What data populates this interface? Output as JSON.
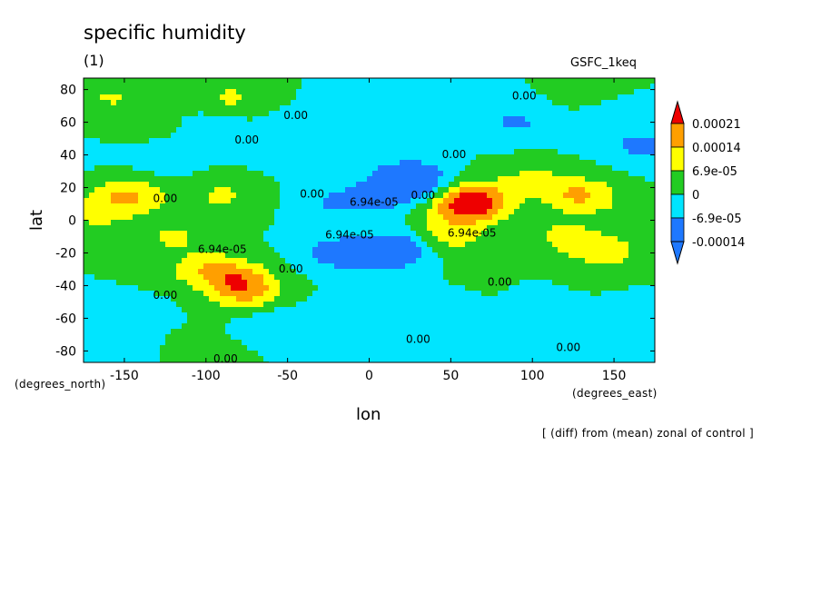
{
  "chart_data": {
    "type": "heatmap",
    "title": "specific humidity",
    "subtitle": "(1)",
    "experiment": "GSFC_1keq",
    "xlabel": "lon",
    "ylabel": "lat",
    "x_units": "(degrees_east)",
    "y_units": "(degrees_north)",
    "xlim": [
      -175,
      175
    ],
    "ylim": [
      -87,
      87
    ],
    "x_ticks": [
      -150,
      -100,
      -50,
      0,
      50,
      100,
      150
    ],
    "y_ticks": [
      -80,
      -60,
      -40,
      -20,
      0,
      20,
      40,
      60,
      80
    ],
    "x_tick_labels": [
      "-150",
      "-100",
      "-50",
      "0",
      "50",
      "100",
      "150"
    ],
    "y_tick_labels": [
      "-80",
      "-60",
      "-40",
      "-20",
      "0",
      "20",
      "40",
      "60",
      "80"
    ],
    "colorbar": {
      "levels": [
        -0.00014,
        -6.9e-05,
        0,
        6.9e-05,
        0.00014,
        0.00021
      ],
      "labels": [
        "-0.00014",
        "-6.9e-05",
        "0",
        "6.9e-05",
        "0.00014",
        "0.00021"
      ],
      "colors": [
        "#1e78ff",
        "#00e5ff",
        "#22cc22",
        "#ffff00",
        "#ff9f00",
        "#ee0000"
      ],
      "extend": "both"
    },
    "contour_labels": [
      {
        "text": "0.00",
        "lon": -45,
        "lat": 62
      },
      {
        "text": "0.00",
        "lon": -75,
        "lat": 47
      },
      {
        "text": "0.00",
        "lon": 95,
        "lat": 74
      },
      {
        "text": "0.00",
        "lon": 52,
        "lat": 38
      },
      {
        "text": "0.00",
        "lon": -125,
        "lat": 11
      },
      {
        "text": "0.00",
        "lon": -35,
        "lat": 14
      },
      {
        "text": "6.94e-05",
        "lon": 3,
        "lat": 9
      },
      {
        "text": "0.00",
        "lon": 33,
        "lat": 13
      },
      {
        "text": "6.94e-05",
        "lon": -12,
        "lat": -11
      },
      {
        "text": "6.94e-05",
        "lon": 63,
        "lat": -10
      },
      {
        "text": "6.94e-05",
        "lon": -90,
        "lat": -20
      },
      {
        "text": "0.00",
        "lon": -48,
        "lat": -32
      },
      {
        "text": "0.00",
        "lon": 80,
        "lat": -40
      },
      {
        "text": "0.00",
        "lon": -125,
        "lat": -48
      },
      {
        "text": "0.00",
        "lon": 30,
        "lat": -75
      },
      {
        "text": "0.00",
        "lon": 122,
        "lat": -80
      },
      {
        "text": "0.00",
        "lon": -88,
        "lat": -87
      }
    ],
    "features": [
      {
        "lon": -10,
        "lat": 70,
        "value": -4e-05
      },
      {
        "lon": 40,
        "lat": 75,
        "value": -3e-05
      },
      {
        "lon": -130,
        "lat": 70,
        "value": 2e-05
      },
      {
        "lon": 120,
        "lat": 70,
        "value": 1e-05
      },
      {
        "lon": -100,
        "lat": 55,
        "value": -7e-05
      },
      {
        "lon": -130,
        "lat": 40,
        "value": -8e-05
      },
      {
        "lon": -160,
        "lat": 35,
        "value": -6e-05
      },
      {
        "lon": -40,
        "lat": 55,
        "value": -5e-05
      },
      {
        "lon": 90,
        "lat": 60,
        "value": -8e-05
      },
      {
        "lon": 140,
        "lat": 55,
        "value": -4e-05
      },
      {
        "lon": 170,
        "lat": 45,
        "value": -9e-05
      },
      {
        "lon": -85,
        "lat": 75,
        "value": 8e-05
      },
      {
        "lon": -160,
        "lat": 75,
        "value": 7e-05
      },
      {
        "lon": -130,
        "lat": 55,
        "value": 6e-05
      },
      {
        "lon": -155,
        "lat": 35,
        "value": 7e-05
      },
      {
        "lon": -50,
        "lat": 40,
        "value": -2e-05
      },
      {
        "lon": -90,
        "lat": 15,
        "value": 8e-05
      },
      {
        "lon": -140,
        "lat": 15,
        "value": 7e-05
      },
      {
        "lon": -155,
        "lat": 13,
        "value": 0.0001
      },
      {
        "lon": -20,
        "lat": 10,
        "value": -8e-05
      },
      {
        "lon": 25,
        "lat": 25,
        "value": -0.00018
      },
      {
        "lon": 10,
        "lat": 15,
        "value": -9e-05
      },
      {
        "lon": 15,
        "lat": -18,
        "value": -0.00017
      },
      {
        "lon": -20,
        "lat": -20,
        "value": -0.00011
      },
      {
        "lon": 50,
        "lat": -10,
        "value": 0.0001
      },
      {
        "lon": 65,
        "lat": 12,
        "value": 0.00023
      },
      {
        "lon": 55,
        "lat": 5,
        "value": 0.0001
      },
      {
        "lon": 130,
        "lat": 15,
        "value": 0.00015
      },
      {
        "lon": 120,
        "lat": -10,
        "value": 9e-05
      },
      {
        "lon": 145,
        "lat": -20,
        "value": 0.0001
      },
      {
        "lon": 100,
        "lat": 25,
        "value": 8e-05
      },
      {
        "lon": -120,
        "lat": -10,
        "value": 8e-05
      },
      {
        "lon": -80,
        "lat": -35,
        "value": 0.00012
      },
      {
        "lon": -75,
        "lat": -45,
        "value": 0.00014
      },
      {
        "lon": -100,
        "lat": -30,
        "value": 0.0001
      },
      {
        "lon": -130,
        "lat": -35,
        "value": 2e-05
      },
      {
        "lon": -150,
        "lat": -55,
        "value": -6e-05
      },
      {
        "lon": -60,
        "lat": -60,
        "value": -5e-05
      },
      {
        "lon": 0,
        "lat": -55,
        "value": -6e-05
      },
      {
        "lon": 45,
        "lat": -50,
        "value": -5e-05
      },
      {
        "lon": 110,
        "lat": -55,
        "value": -6e-05
      },
      {
        "lon": 160,
        "lat": -60,
        "value": -5e-05
      },
      {
        "lon": 60,
        "lat": -40,
        "value": 2e-05
      },
      {
        "lon": 130,
        "lat": -40,
        "value": 1e-05
      },
      {
        "lon": 20,
        "lat": -70,
        "value": -5e-05
      },
      {
        "lon": 130,
        "lat": -75,
        "value": -4e-05
      },
      {
        "lon": -100,
        "lat": -75,
        "value": 1e-05
      },
      {
        "lon": -160,
        "lat": -75,
        "value": -2e-05
      },
      {
        "lon": 10,
        "lat": -80,
        "value": -3e-05
      },
      {
        "lon": 170,
        "lat": 0,
        "value": 6e-05
      },
      {
        "lon": -170,
        "lat": 0,
        "value": 6e-05
      },
      {
        "lon": 0,
        "lat": 0,
        "value": 2e-05
      }
    ]
  },
  "footer_note": "[ (diff) from (mean) zonal of control ]"
}
